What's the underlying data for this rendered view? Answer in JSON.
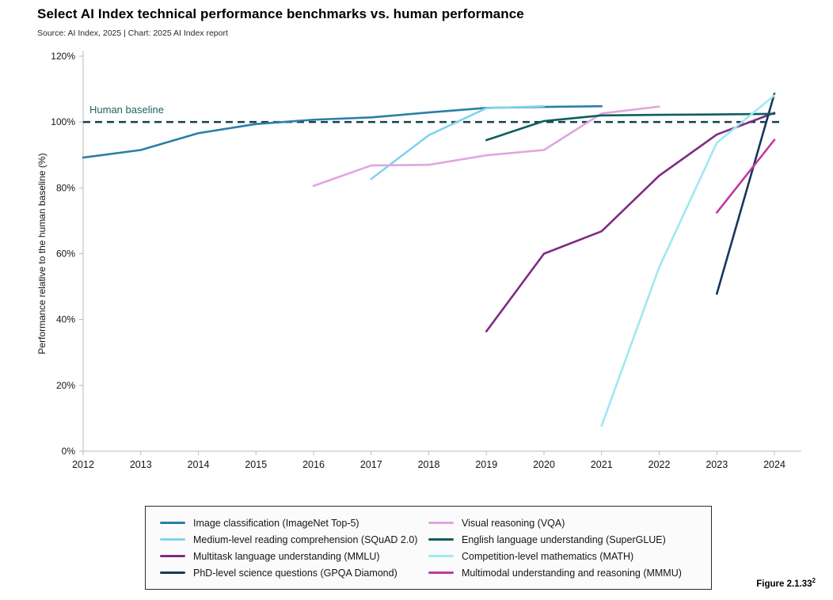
{
  "page": {
    "title": "Select AI Index technical performance benchmarks vs. human performance",
    "source": "Source: AI Index, 2025 | Chart: 2025 AI Index report",
    "figure_label": "Figure 2.1.33",
    "figure_superscript": "2"
  },
  "chart_data": {
    "type": "line",
    "title": "Select AI Index technical performance benchmarks vs. human performance",
    "xlabel": "",
    "ylabel": "Performance relative to the human baseline (%)",
    "xlim": [
      2012,
      2024
    ],
    "ylim": [
      0,
      120
    ],
    "grid": false,
    "legend_position": "bottom",
    "x_ticks": [
      2012,
      2013,
      2014,
      2015,
      2016,
      2017,
      2018,
      2019,
      2020,
      2021,
      2022,
      2023,
      2024
    ],
    "y_tick_values": [
      0,
      20,
      40,
      60,
      80,
      100,
      120
    ],
    "y_tick_labels": [
      "0%",
      "20%",
      "40%",
      "60%",
      "80%",
      "100%",
      "120%"
    ],
    "baseline": {
      "value": 100,
      "label": "Human baseline",
      "color": "#173f4e",
      "label_color": "#1f655c",
      "style": "dashed"
    },
    "axis_color": "#b9b9b9",
    "tick_label_color": "#141414",
    "series": [
      {
        "name": "Image classification (ImageNet Top-5)",
        "color": "#2b7fa8",
        "x": [
          2012,
          2013,
          2014,
          2015,
          2016,
          2017,
          2018,
          2019,
          2020,
          2021
        ],
        "y": [
          89.2,
          91.5,
          96.6,
          99.4,
          100.7,
          101.4,
          102.9,
          104.3,
          104.6,
          104.8
        ]
      },
      {
        "name": "Medium-level reading comprehension (SQuAD 2.0)",
        "color": "#82d3f0",
        "x": [
          2017,
          2018,
          2019,
          2020
        ],
        "y": [
          82.7,
          96.0,
          104.2,
          104.8
        ]
      },
      {
        "name": "Multitask language understanding (MMLU)",
        "color": "#7e2b83",
        "x": [
          2019,
          2020,
          2021,
          2022,
          2023,
          2024
        ],
        "y": [
          36.4,
          60.0,
          66.8,
          83.7,
          96.2,
          102.8
        ]
      },
      {
        "name": "PhD-level science questions (GPQA Diamond)",
        "color": "#17375a",
        "x": [
          2023,
          2024
        ],
        "y": [
          47.8,
          108.6
        ]
      },
      {
        "name": "Visual reasoning (VQA)",
        "color": "#e0a6de",
        "x": [
          2016,
          2017,
          2018,
          2019,
          2020,
          2021,
          2022
        ],
        "y": [
          80.6,
          86.8,
          87.0,
          89.9,
          91.5,
          102.6,
          104.7
        ]
      },
      {
        "name": "English language understanding (SuperGLUE)",
        "color": "#0d5f5f",
        "x": [
          2019,
          2020,
          2021,
          2022,
          2023,
          2024
        ],
        "y": [
          94.5,
          100.3,
          102.0,
          102.2,
          102.3,
          102.5
        ]
      },
      {
        "name": "Competition-level mathematics (MATH)",
        "color": "#9de9f2",
        "x": [
          2021,
          2022,
          2023,
          2024
        ],
        "y": [
          7.7,
          55.9,
          93.7,
          108.1
        ]
      },
      {
        "name": "Multimodal understanding and reasoning (MMMU)",
        "color": "#bf3a9c",
        "x": [
          2023,
          2024
        ],
        "y": [
          72.5,
          94.6
        ]
      }
    ],
    "legend_columns": [
      [
        0,
        1,
        2,
        3
      ],
      [
        4,
        5,
        6,
        7
      ]
    ]
  }
}
